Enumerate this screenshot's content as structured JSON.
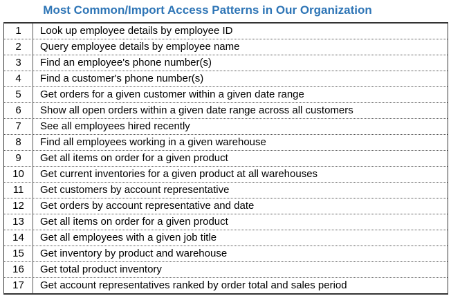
{
  "title": "Most Common/Import Access Patterns in Our Organization",
  "rows": [
    {
      "num": "1",
      "text": "Look up employee details by employee ID"
    },
    {
      "num": "2",
      "text": "Query employee details by employee name"
    },
    {
      "num": "3",
      "text": "Find an employee's phone number(s)"
    },
    {
      "num": "4",
      "text": "Find a customer's phone number(s)"
    },
    {
      "num": "5",
      "text": "Get orders for a given customer within a given date range"
    },
    {
      "num": "6",
      "text": "Show all open orders within a given date range across all customers"
    },
    {
      "num": "7",
      "text": "See all employees hired recently"
    },
    {
      "num": "8",
      "text": "Find all employees working in a given warehouse"
    },
    {
      "num": "9",
      "text": "Get all items on order for a given product"
    },
    {
      "num": "10",
      "text": "Get current inventories for a given product at all warehouses"
    },
    {
      "num": "11",
      "text": "Get customers by account representative"
    },
    {
      "num": "12",
      "text": "Get orders by account representative and date"
    },
    {
      "num": "13",
      "text": "Get all items on order for a given product"
    },
    {
      "num": "14",
      "text": "Get all employees with a given job title"
    },
    {
      "num": "15",
      "text": "Get inventory by product and warehouse"
    },
    {
      "num": "16",
      "text": "Get total product inventory"
    },
    {
      "num": "17",
      "text": "Get account representatives ranked by order total and sales period"
    }
  ]
}
